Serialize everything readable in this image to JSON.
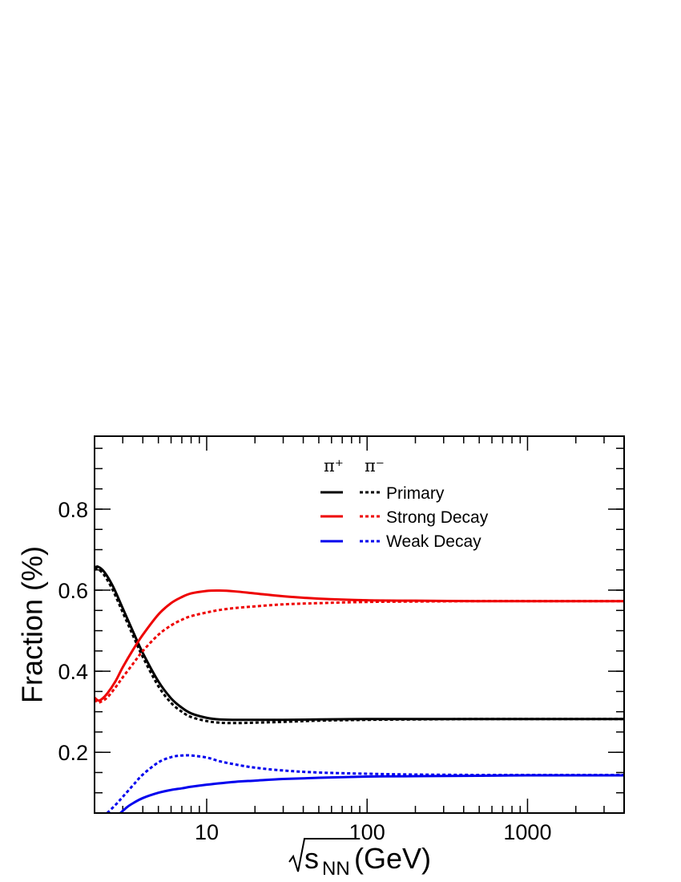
{
  "chart_data": {
    "type": "line",
    "xlabel": {
      "root": "s",
      "sub": "NN",
      "unit": "(GeV)"
    },
    "ylabel": "Fraction (%)",
    "xscale": "log",
    "xlim": [
      2.0,
      4000
    ],
    "ylim": [
      0.05,
      0.98
    ],
    "grid": false,
    "legend_placement": "top-center",
    "x_ticks": [
      10,
      100,
      1000
    ],
    "x_tick_labels": [
      "10",
      "100",
      "1000"
    ],
    "y_ticks": [
      0.2,
      0.4,
      0.6,
      0.8
    ],
    "y_tick_labels": [
      "0.2",
      "0.4",
      "0.6",
      "0.8"
    ],
    "legend": {
      "header_solid": "π⁺",
      "header_dashed": "π⁻",
      "entries": [
        "Primary",
        "Strong Decay",
        "Weak Decay"
      ]
    },
    "series": [
      {
        "component": "Primary",
        "particle": "π⁺",
        "color": "#000000",
        "style": "solid",
        "x": [
          2.0,
          2.1,
          2.3,
          2.6,
          3.0,
          3.5,
          4.0,
          5.0,
          6.0,
          7.0,
          8.0,
          10,
          12,
          15,
          20,
          30,
          50,
          100,
          200,
          500,
          1000,
          2000,
          4000
        ],
        "y": [
          0.655,
          0.658,
          0.645,
          0.61,
          0.555,
          0.495,
          0.445,
          0.375,
          0.333,
          0.31,
          0.296,
          0.285,
          0.281,
          0.28,
          0.28,
          0.28,
          0.281,
          0.282,
          0.282,
          0.282,
          0.282,
          0.282,
          0.282
        ]
      },
      {
        "component": "Primary",
        "particle": "π⁻",
        "color": "#000000",
        "style": "dashed",
        "x": [
          2.0,
          2.1,
          2.3,
          2.6,
          3.0,
          3.5,
          4.0,
          5.0,
          6.0,
          7.0,
          8.0,
          10,
          12,
          15,
          20,
          30,
          50,
          100,
          200,
          500,
          1000,
          2000,
          4000
        ],
        "y": [
          0.65,
          0.652,
          0.637,
          0.6,
          0.545,
          0.485,
          0.435,
          0.363,
          0.322,
          0.3,
          0.287,
          0.277,
          0.273,
          0.272,
          0.273,
          0.275,
          0.278,
          0.28,
          0.281,
          0.282,
          0.282,
          0.282,
          0.282
        ]
      },
      {
        "component": "Strong Decay",
        "particle": "π⁺",
        "color": "#ee0000",
        "style": "solid",
        "x": [
          2.0,
          2.1,
          2.2,
          2.4,
          2.7,
          3.0,
          3.5,
          4.0,
          5.0,
          6.0,
          7.0,
          8.0,
          10,
          12,
          15,
          20,
          30,
          50,
          100,
          200,
          500,
          1000,
          2000,
          4000
        ],
        "y": [
          0.335,
          0.328,
          0.33,
          0.345,
          0.375,
          0.41,
          0.455,
          0.49,
          0.54,
          0.568,
          0.583,
          0.592,
          0.598,
          0.599,
          0.597,
          0.592,
          0.585,
          0.579,
          0.575,
          0.574,
          0.573,
          0.573,
          0.573,
          0.573
        ]
      },
      {
        "component": "Strong Decay",
        "particle": "π⁻",
        "color": "#ee0000",
        "style": "dashed",
        "x": [
          2.0,
          2.1,
          2.2,
          2.4,
          2.7,
          3.0,
          3.5,
          4.0,
          5.0,
          6.0,
          7.0,
          8.0,
          10,
          12,
          15,
          20,
          30,
          50,
          100,
          200,
          500,
          1000,
          2000,
          4000
        ],
        "y": [
          0.33,
          0.323,
          0.325,
          0.335,
          0.36,
          0.385,
          0.42,
          0.45,
          0.49,
          0.513,
          0.527,
          0.536,
          0.545,
          0.551,
          0.556,
          0.56,
          0.565,
          0.568,
          0.571,
          0.572,
          0.573,
          0.573,
          0.573,
          0.573
        ]
      },
      {
        "component": "Weak Decay",
        "particle": "π⁺",
        "color": "#0000ee",
        "style": "solid",
        "x": [
          2.9,
          3.2,
          3.5,
          4.0,
          5.0,
          6.0,
          7.0,
          8.0,
          10,
          15,
          20,
          30,
          50,
          100,
          200,
          500,
          1000,
          2000,
          4000
        ],
        "y": [
          0.05,
          0.065,
          0.075,
          0.087,
          0.1,
          0.107,
          0.111,
          0.115,
          0.12,
          0.127,
          0.13,
          0.134,
          0.137,
          0.14,
          0.141,
          0.142,
          0.143,
          0.143,
          0.143
        ]
      },
      {
        "component": "Weak Decay",
        "particle": "π⁻",
        "color": "#0000ee",
        "style": "dashed",
        "x": [
          2.4,
          2.7,
          3.0,
          3.5,
          4.0,
          5.0,
          6.0,
          7.0,
          8.0,
          10,
          12,
          15,
          20,
          30,
          50,
          100,
          200,
          500,
          1000,
          2000,
          4000
        ],
        "y": [
          0.05,
          0.07,
          0.09,
          0.12,
          0.145,
          0.175,
          0.188,
          0.192,
          0.192,
          0.187,
          0.178,
          0.17,
          0.162,
          0.155,
          0.15,
          0.147,
          0.145,
          0.144,
          0.144,
          0.144,
          0.144
        ]
      }
    ]
  }
}
